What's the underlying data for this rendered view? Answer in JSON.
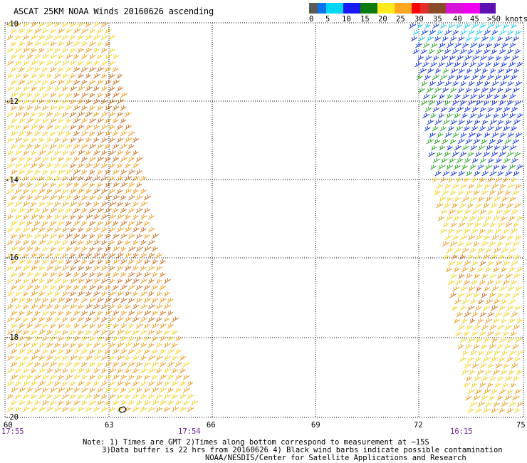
{
  "title": "ASCAT 25KM NOAA Winds 20160626 ascending",
  "scale": {
    "colors": [
      "#5a5a5a",
      "#0a73f0",
      "#00d7f5",
      "#1919f5",
      "#0c7c0c",
      "#ffeb1e",
      "#ffa81e",
      "#ff0000",
      "#e32c2c",
      "#8b4a2a",
      "#d715d7",
      "#f000f0",
      "#6010b0"
    ],
    "labels": [
      "0",
      "5",
      "10",
      "15",
      "20",
      "25",
      "30",
      "35",
      "40",
      "45",
      ">50 knots"
    ]
  },
  "map": {
    "lon_range": [
      60,
      75
    ],
    "lat_range": [
      -20,
      -10
    ],
    "x_ticks": [
      "60",
      "63",
      "66",
      "69",
      "72",
      "75"
    ],
    "y_ticks": [
      "-10",
      "-12",
      "-14",
      "-16",
      "-18",
      "-20"
    ],
    "times": [
      "17:55",
      "17:54",
      "16:15"
    ],
    "barb_colors": {
      "yellow": "#f0d020",
      "orange": "#ec9a18",
      "brown": "#c86a18",
      "green": "#22a21e",
      "blue": "#0b2fd8",
      "cyan": "#18c7e8"
    }
  },
  "notes": [
    "Note: 1) Times are GMT 2)Times along bottom correspond to measurement at ~15S",
    "3)Data buffer is 22 hrs from 20160626 4) Black wind barbs indicate possible contamination",
    "NOAA/NESDIS/Center for Satellite Applications and Research"
  ]
}
